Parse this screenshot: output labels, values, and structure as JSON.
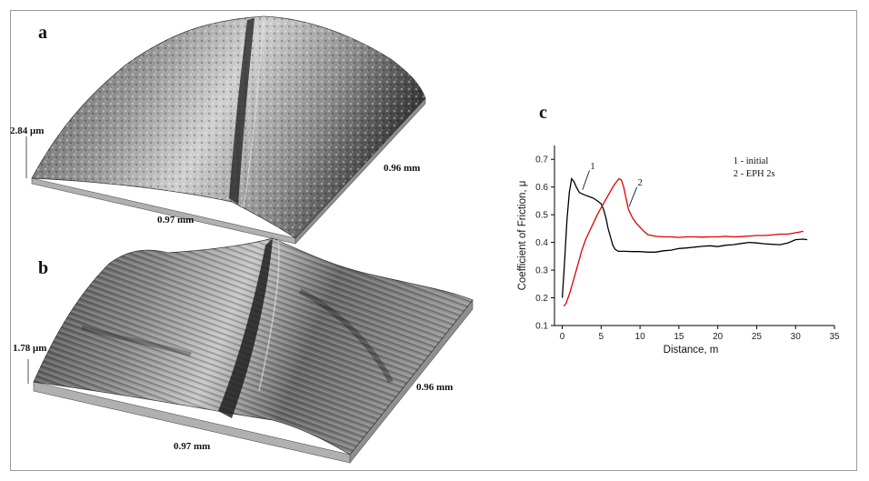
{
  "panels": {
    "a": {
      "letter": "a",
      "z_scale": "2.84 μm",
      "y_extent": "0.96 mm",
      "x_extent": "0.97 mm"
    },
    "b": {
      "letter": "b",
      "z_scale": "1.78 μm",
      "y_extent": "0.96 mm",
      "x_extent": "0.97 mm"
    },
    "c": {
      "letter": "c"
    }
  },
  "colors": {
    "curve1": "#000000",
    "curve2": "#e00000",
    "surface_dark": "#2a2a2a",
    "surface_light": "#d8d8d8"
  },
  "chart_data": {
    "type": "line",
    "xlabel": "Distance, m",
    "ylabel": "Coefficient of Friction, μ",
    "xlim": [
      -1,
      35
    ],
    "ylim": [
      0.1,
      0.75
    ],
    "xticks": [
      0,
      5,
      10,
      15,
      20,
      25,
      30,
      35
    ],
    "yticks": [
      0.1,
      0.2,
      0.3,
      0.4,
      0.5,
      0.6,
      0.7
    ],
    "legend": [
      "1 - initial",
      "2 - EPH 2s"
    ],
    "legend_position": "top-right",
    "series": [
      {
        "name": "1",
        "label_mark": "1",
        "color": "#000000",
        "x": [
          0,
          0.3,
          0.6,
          0.9,
          1.2,
          1.5,
          1.8,
          2.2,
          2.6,
          3.0,
          3.5,
          4.0,
          4.5,
          5.0,
          5.3,
          5.6,
          5.9,
          6.2,
          6.5,
          6.8,
          7.2,
          8,
          9,
          10,
          11,
          12,
          13,
          14,
          15,
          16,
          17,
          18,
          19,
          20,
          21,
          22,
          23,
          24,
          25,
          26,
          27,
          28,
          29,
          30,
          31,
          31.5
        ],
        "y": [
          0.2,
          0.33,
          0.48,
          0.58,
          0.63,
          0.62,
          0.6,
          0.58,
          0.575,
          0.57,
          0.565,
          0.56,
          0.55,
          0.54,
          0.52,
          0.49,
          0.45,
          0.42,
          0.39,
          0.375,
          0.368,
          0.368,
          0.367,
          0.367,
          0.365,
          0.365,
          0.37,
          0.372,
          0.378,
          0.38,
          0.383,
          0.386,
          0.388,
          0.385,
          0.39,
          0.392,
          0.396,
          0.4,
          0.398,
          0.395,
          0.393,
          0.392,
          0.398,
          0.41,
          0.412,
          0.41
        ]
      },
      {
        "name": "2",
        "label_mark": "2",
        "color": "#e00000",
        "x": [
          0.2,
          0.5,
          1,
          1.5,
          2,
          2.5,
          3,
          3.5,
          4,
          4.5,
          5,
          5.5,
          6,
          6.5,
          7,
          7.3,
          7.6,
          7.9,
          8.2,
          8.5,
          9,
          9.5,
          10,
          10.5,
          11,
          12,
          13,
          14,
          15,
          16,
          17,
          18,
          19,
          20,
          21,
          22,
          23,
          24,
          25,
          26,
          27,
          28,
          29,
          30,
          31
        ],
        "y": [
          0.17,
          0.18,
          0.22,
          0.27,
          0.32,
          0.37,
          0.41,
          0.44,
          0.47,
          0.5,
          0.525,
          0.55,
          0.575,
          0.6,
          0.62,
          0.63,
          0.625,
          0.6,
          0.56,
          0.52,
          0.49,
          0.47,
          0.455,
          0.44,
          0.428,
          0.422,
          0.42,
          0.42,
          0.418,
          0.42,
          0.42,
          0.419,
          0.42,
          0.42,
          0.422,
          0.42,
          0.421,
          0.423,
          0.425,
          0.425,
          0.427,
          0.43,
          0.43,
          0.435,
          0.44
        ]
      }
    ]
  }
}
